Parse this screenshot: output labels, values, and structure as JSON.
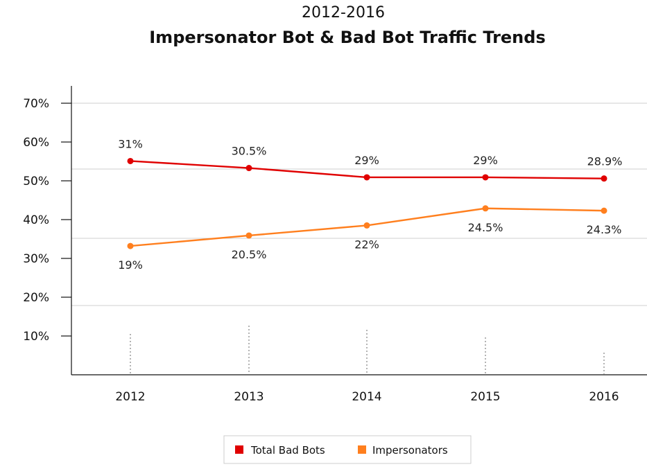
{
  "chart_data": {
    "type": "line",
    "title": "Impersonator Bot & Bad Bot Traffic Trends",
    "subtitle": "2012-2016",
    "categories": [
      "2012",
      "2013",
      "2014",
      "2015",
      "2016"
    ],
    "y_tick_labels": [
      "10%",
      "20%",
      "30%",
      "40%",
      "50%",
      "60%",
      "70%"
    ],
    "ylim": [
      0,
      74
    ],
    "grid": true,
    "legend_position": "bottom-center",
    "series": [
      {
        "name": "Total Bad Bots",
        "color": "#e00000",
        "values": [
          55.1,
          53.3,
          50.9,
          50.9,
          50.6
        ],
        "labels": [
          "31%",
          "30.5%",
          "29%",
          "29%",
          "28.9%"
        ]
      },
      {
        "name": "Impersonators",
        "color": "#ff7f1e",
        "values": [
          33.2,
          35.9,
          38.5,
          42.9,
          42.3
        ],
        "labels": [
          "19%",
          "20.5%",
          "22%",
          "24.5%",
          "24.3%"
        ]
      }
    ]
  }
}
